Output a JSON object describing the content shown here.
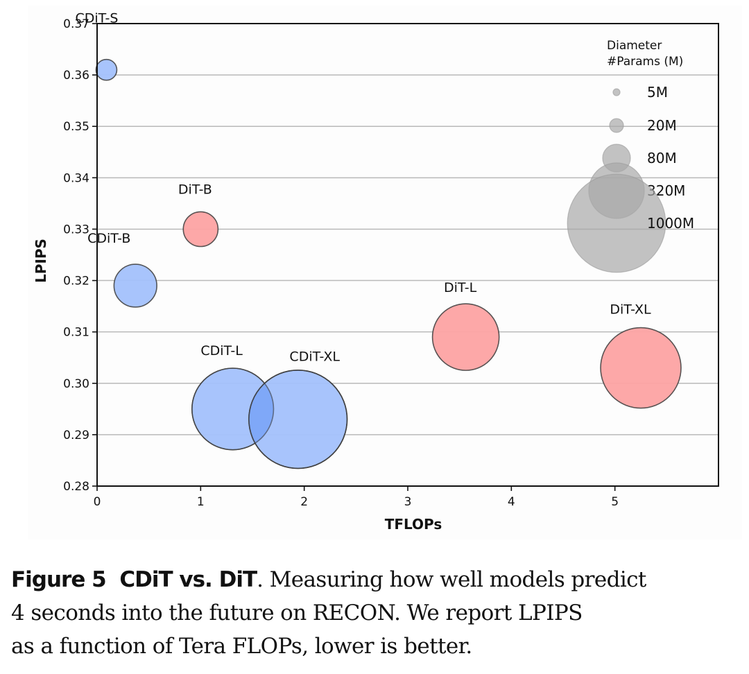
{
  "chart_data": {
    "type": "scatter",
    "subtype": "bubble",
    "xlabel": "TFLOPs",
    "ylabel": "LPIPS",
    "xlim": [
      0,
      6
    ],
    "ylim": [
      0.28,
      0.37
    ],
    "xticks": [
      0,
      1,
      2,
      3,
      4,
      5
    ],
    "xtick_labels": [
      "0",
      "1",
      "2",
      "3",
      "4",
      "5"
    ],
    "yticks": [
      0.28,
      0.29,
      0.3,
      0.31,
      0.32,
      0.33,
      0.34,
      0.35,
      0.36,
      0.37
    ],
    "ytick_labels": [
      "0.28",
      "0.29",
      "0.30",
      "0.31",
      "0.32",
      "0.33",
      "0.34",
      "0.35",
      "0.36",
      "0.37"
    ],
    "grid": "horizontal",
    "size_encoding": "diameter ∝ sqrt(#Params (M))",
    "series": [
      {
        "name": "CDiT",
        "color": "#a3c1fc",
        "points": [
          {
            "label": "CDiT-S",
            "x": 0.09,
            "y": 0.361,
            "params_m": 45
          },
          {
            "label": "CDiT-B",
            "x": 0.37,
            "y": 0.319,
            "params_m": 190
          },
          {
            "label": "CDiT-L",
            "x": 1.31,
            "y": 0.295,
            "params_m": 690
          },
          {
            "label": "CDiT-XL",
            "x": 1.94,
            "y": 0.293,
            "params_m": 1000
          }
        ]
      },
      {
        "name": "DiT",
        "color": "#fda3a3",
        "points": [
          {
            "label": "DiT-B",
            "x": 1.0,
            "y": 0.33,
            "params_m": 125
          },
          {
            "label": "DiT-L",
            "x": 3.56,
            "y": 0.309,
            "params_m": 460
          },
          {
            "label": "DiT-XL",
            "x": 5.25,
            "y": 0.303,
            "params_m": 670
          }
        ]
      }
    ],
    "legend": {
      "title_line1": "Diameter",
      "title_line2": "#Params (M)",
      "position": "top-right",
      "entries": [
        {
          "label": "5M",
          "params_m": 5
        },
        {
          "label": "20M",
          "params_m": 20
        },
        {
          "label": "80M",
          "params_m": 80
        },
        {
          "label": "320M",
          "params_m": 320
        },
        {
          "label": "1000M",
          "params_m": 1000
        }
      ],
      "color": "#a8a8a8"
    }
  },
  "caption": {
    "figure_label": "Figure 5",
    "title": "CDiT vs. DiT",
    "text_line1": ". Measuring how well models predict",
    "text_line2": "4 seconds into the future on RECON. We report LPIPS",
    "text_line3": "as a function of Tera FLOPs, lower is better."
  }
}
